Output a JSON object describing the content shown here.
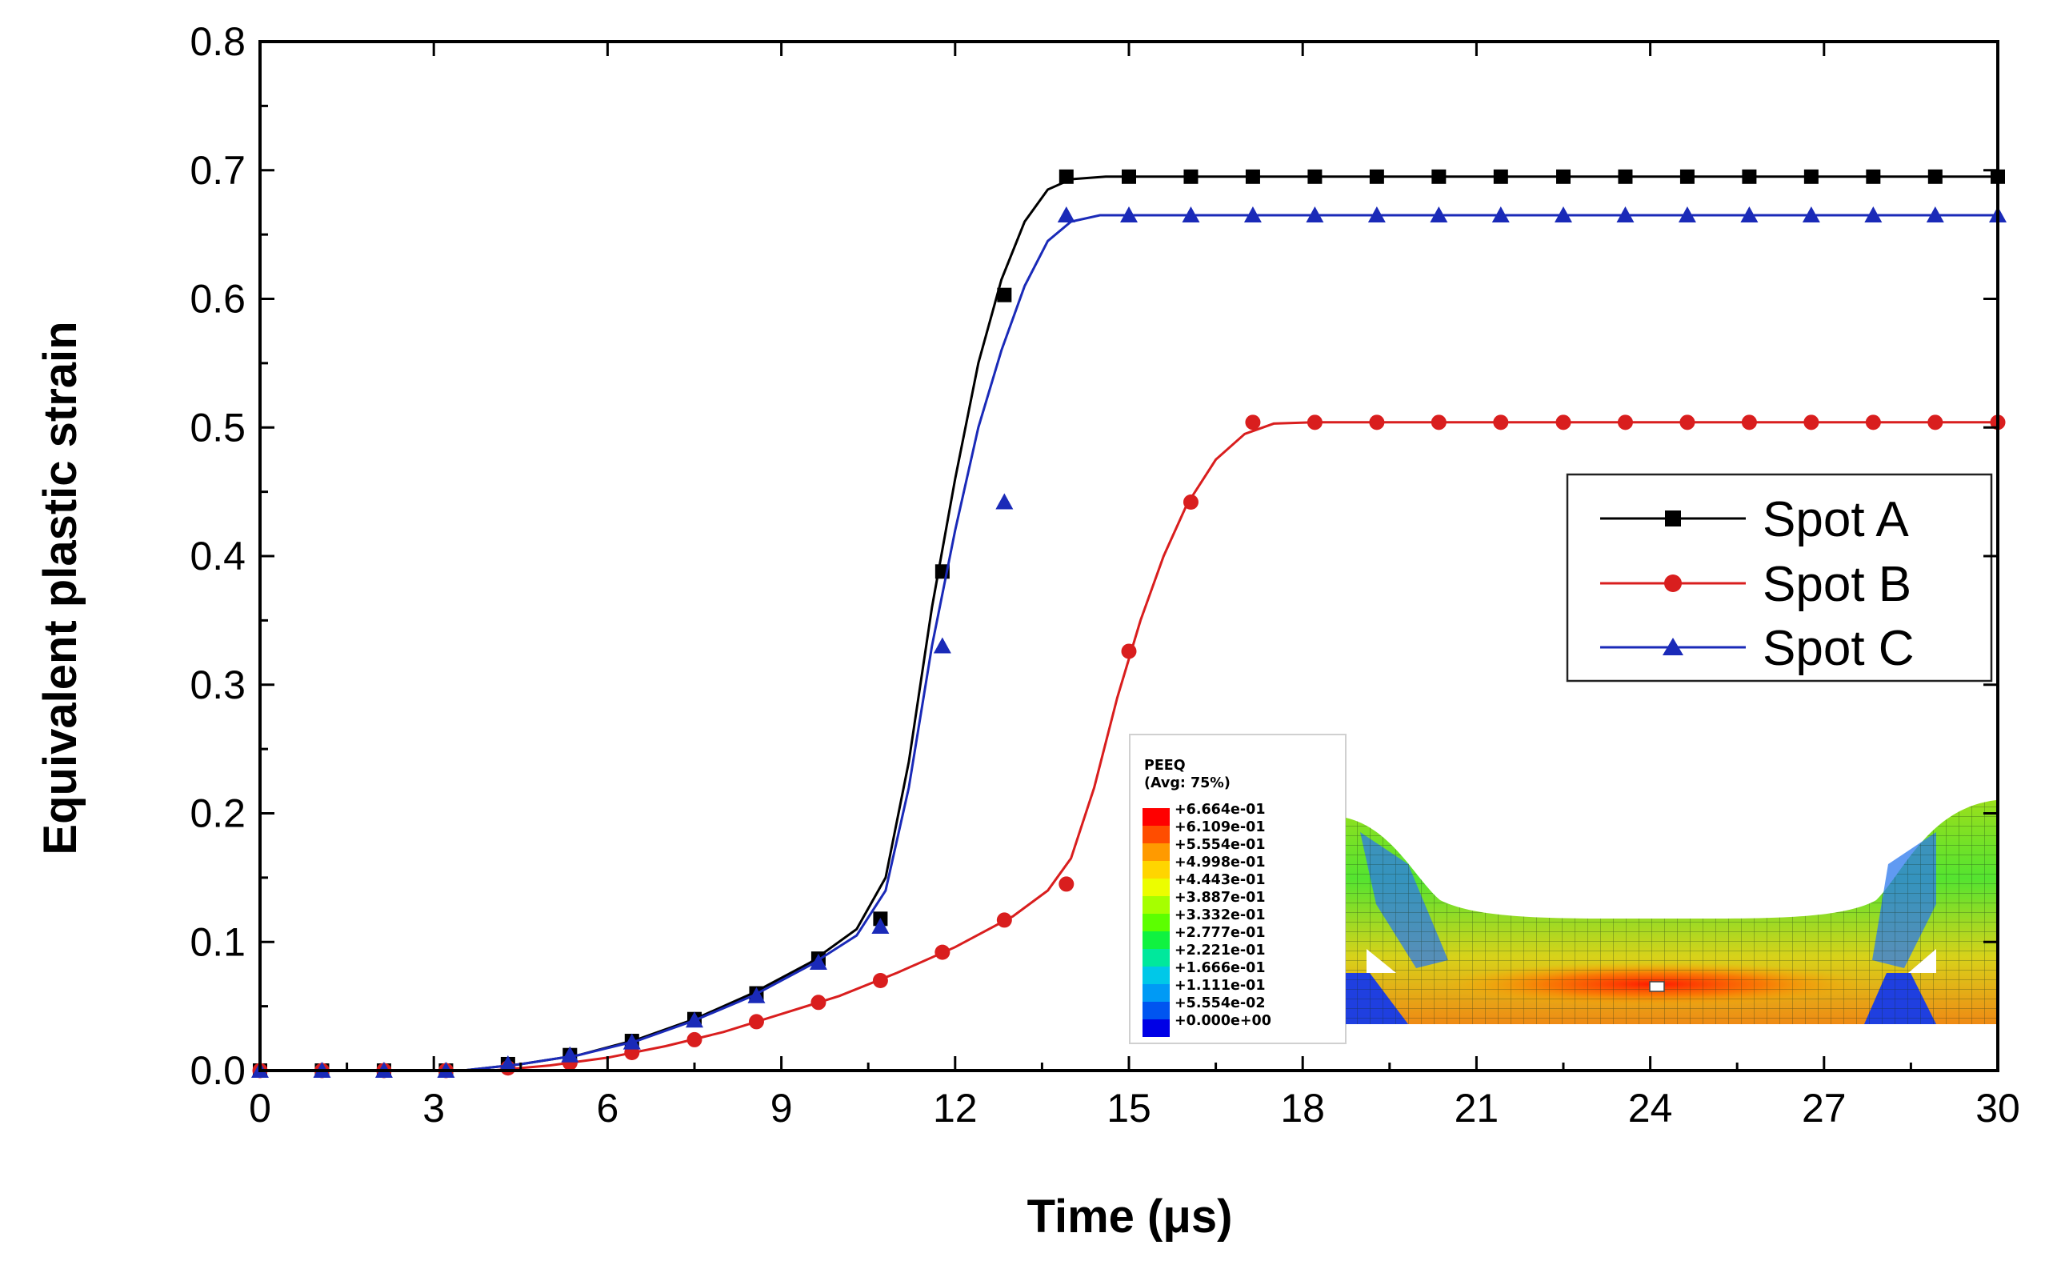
{
  "chart_data": {
    "type": "line",
    "title": "",
    "xlabel": "Time (μs)",
    "ylabel": "Equivalent plastic strain",
    "xlim": [
      0,
      30
    ],
    "ylim": [
      0,
      0.8
    ],
    "xticks": [
      "0",
      "3",
      "6",
      "9",
      "12",
      "15",
      "18",
      "21",
      "24",
      "27",
      "30"
    ],
    "yticks": [
      "0.0",
      "0.1",
      "0.2",
      "0.3",
      "0.4",
      "0.5",
      "0.6",
      "0.7",
      "0.8"
    ],
    "grid": false,
    "legend_position": "right",
    "series": [
      {
        "name": "Spot A",
        "color": "#000000",
        "marker": "square",
        "points": [
          [
            0,
            0
          ],
          [
            1.07,
            0
          ],
          [
            2.14,
            0
          ],
          [
            3.21,
            0
          ],
          [
            4.28,
            0.005
          ],
          [
            5.35,
            0.012
          ],
          [
            6.42,
            0.023
          ],
          [
            7.5,
            0.04
          ],
          [
            8.57,
            0.06
          ],
          [
            9.64,
            0.087
          ],
          [
            10.71,
            0.118
          ],
          [
            11.78,
            0.388
          ],
          [
            12.85,
            0.603
          ],
          [
            13.92,
            0.695
          ],
          [
            15,
            0.695
          ],
          [
            16.07,
            0.695
          ],
          [
            17.14,
            0.695
          ],
          [
            18.21,
            0.695
          ],
          [
            19.28,
            0.695
          ],
          [
            20.35,
            0.695
          ],
          [
            21.42,
            0.695
          ],
          [
            22.5,
            0.695
          ],
          [
            23.57,
            0.695
          ],
          [
            24.64,
            0.695
          ],
          [
            25.71,
            0.695
          ],
          [
            26.78,
            0.695
          ],
          [
            27.85,
            0.695
          ],
          [
            28.92,
            0.695
          ],
          [
            30,
            0.695
          ]
        ],
        "curve": [
          [
            0,
            0
          ],
          [
            3.5,
            0
          ],
          [
            4.5,
            0.005
          ],
          [
            5.5,
            0.012
          ],
          [
            6.5,
            0.024
          ],
          [
            7.5,
            0.04
          ],
          [
            8.5,
            0.06
          ],
          [
            9.5,
            0.084
          ],
          [
            10.3,
            0.11
          ],
          [
            10.8,
            0.15
          ],
          [
            11.2,
            0.24
          ],
          [
            11.6,
            0.36
          ],
          [
            12.0,
            0.46
          ],
          [
            12.4,
            0.55
          ],
          [
            12.8,
            0.615
          ],
          [
            13.2,
            0.66
          ],
          [
            13.6,
            0.685
          ],
          [
            14.0,
            0.693
          ],
          [
            14.6,
            0.695
          ],
          [
            30,
            0.695
          ]
        ]
      },
      {
        "name": "Spot B",
        "color": "#d91e1e",
        "marker": "circle",
        "points": [
          [
            0,
            0
          ],
          [
            1.07,
            0
          ],
          [
            2.14,
            0
          ],
          [
            3.21,
            0
          ],
          [
            4.28,
            0.002
          ],
          [
            5.35,
            0.006
          ],
          [
            6.42,
            0.014
          ],
          [
            7.5,
            0.024
          ],
          [
            8.57,
            0.038
          ],
          [
            9.64,
            0.053
          ],
          [
            10.71,
            0.07
          ],
          [
            11.78,
            0.092
          ],
          [
            12.85,
            0.117
          ],
          [
            13.92,
            0.145
          ],
          [
            15,
            0.326
          ],
          [
            16.07,
            0.442
          ],
          [
            17.14,
            0.504
          ],
          [
            18.21,
            0.504
          ],
          [
            19.28,
            0.504
          ],
          [
            20.35,
            0.504
          ],
          [
            21.42,
            0.504
          ],
          [
            22.5,
            0.504
          ],
          [
            23.57,
            0.504
          ],
          [
            24.64,
            0.504
          ],
          [
            25.71,
            0.504
          ],
          [
            26.78,
            0.504
          ],
          [
            27.85,
            0.504
          ],
          [
            28.92,
            0.504
          ],
          [
            30,
            0.504
          ]
        ],
        "curve": [
          [
            0,
            0
          ],
          [
            4.0,
            0
          ],
          [
            5.0,
            0.004
          ],
          [
            6.0,
            0.01
          ],
          [
            7.0,
            0.019
          ],
          [
            8.0,
            0.03
          ],
          [
            9.0,
            0.044
          ],
          [
            10.0,
            0.058
          ],
          [
            11.0,
            0.076
          ],
          [
            12.0,
            0.096
          ],
          [
            13.0,
            0.12
          ],
          [
            13.6,
            0.14
          ],
          [
            14.0,
            0.165
          ],
          [
            14.4,
            0.22
          ],
          [
            14.8,
            0.29
          ],
          [
            15.2,
            0.35
          ],
          [
            15.6,
            0.4
          ],
          [
            16.0,
            0.44
          ],
          [
            16.5,
            0.475
          ],
          [
            17.0,
            0.495
          ],
          [
            17.5,
            0.503
          ],
          [
            18.2,
            0.504
          ],
          [
            30,
            0.504
          ]
        ]
      },
      {
        "name": "Spot C",
        "color": "#1a2ab8",
        "marker": "triangle",
        "points": [
          [
            0,
            0
          ],
          [
            1.07,
            0
          ],
          [
            2.14,
            0
          ],
          [
            3.21,
            0
          ],
          [
            4.28,
            0.005
          ],
          [
            5.35,
            0.012
          ],
          [
            6.42,
            0.022
          ],
          [
            7.5,
            0.039
          ],
          [
            8.57,
            0.058
          ],
          [
            9.64,
            0.084
          ],
          [
            10.71,
            0.112
          ],
          [
            11.78,
            0.33
          ],
          [
            12.85,
            0.442
          ],
          [
            13.92,
            0.665
          ],
          [
            15,
            0.665
          ],
          [
            16.07,
            0.665
          ],
          [
            17.14,
            0.665
          ],
          [
            18.21,
            0.665
          ],
          [
            19.28,
            0.665
          ],
          [
            20.35,
            0.665
          ],
          [
            21.42,
            0.665
          ],
          [
            22.5,
            0.665
          ],
          [
            23.57,
            0.665
          ],
          [
            24.64,
            0.665
          ],
          [
            25.71,
            0.665
          ],
          [
            26.78,
            0.665
          ],
          [
            27.85,
            0.665
          ],
          [
            28.92,
            0.665
          ],
          [
            30,
            0.665
          ]
        ],
        "curve": [
          [
            0,
            0
          ],
          [
            3.5,
            0
          ],
          [
            4.5,
            0.005
          ],
          [
            5.5,
            0.012
          ],
          [
            6.5,
            0.023
          ],
          [
            7.5,
            0.039
          ],
          [
            8.5,
            0.058
          ],
          [
            9.5,
            0.082
          ],
          [
            10.3,
            0.105
          ],
          [
            10.8,
            0.14
          ],
          [
            11.2,
            0.22
          ],
          [
            11.6,
            0.33
          ],
          [
            12.0,
            0.42
          ],
          [
            12.4,
            0.5
          ],
          [
            12.8,
            0.56
          ],
          [
            13.2,
            0.61
          ],
          [
            13.6,
            0.645
          ],
          [
            14.0,
            0.66
          ],
          [
            14.5,
            0.665
          ],
          [
            30,
            0.665
          ]
        ]
      }
    ],
    "inset": {
      "title": "PEEQ",
      "subtitle": "(Avg: 75%)",
      "levels": [
        "+6.664e-01",
        "+6.109e-01",
        "+5.554e-01",
        "+4.998e-01",
        "+4.443e-01",
        "+3.887e-01",
        "+3.332e-01",
        "+2.777e-01",
        "+2.221e-01",
        "+1.666e-01",
        "+1.111e-01",
        "+5.554e-02",
        "+0.000e+00"
      ],
      "colors": [
        "#ff0000",
        "#ff4d00",
        "#ff9a00",
        "#ffd500",
        "#ecfd00",
        "#a6ff00",
        "#5cff00",
        "#10f240",
        "#00e89c",
        "#00c8e8",
        "#009af5",
        "#0055f0",
        "#0000e6"
      ]
    }
  }
}
